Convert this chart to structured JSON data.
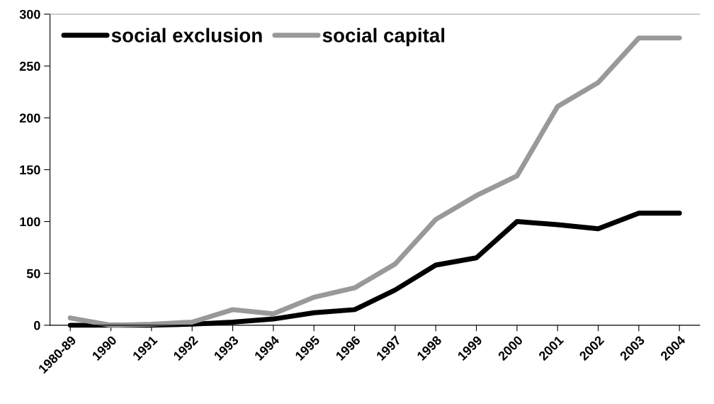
{
  "chart_data": {
    "type": "line",
    "categories": [
      "1980-89",
      "1990",
      "1991",
      "1992",
      "1993",
      "1994",
      "1995",
      "1996",
      "1997",
      "1998",
      "1999",
      "2000",
      "2001",
      "2002",
      "2003",
      "2004"
    ],
    "series": [
      {
        "name": "social exclusion",
        "color": "#000000",
        "values": [
          0,
          0,
          0,
          1,
          3,
          6,
          12,
          15,
          34,
          58,
          65,
          100,
          97,
          93,
          108,
          108
        ]
      },
      {
        "name": "social capital",
        "color": "#999999",
        "values": [
          7,
          0,
          1,
          3,
          15,
          11,
          27,
          36,
          59,
          102,
          125,
          144,
          211,
          234,
          277,
          277
        ]
      }
    ],
    "ylim": [
      0,
      300
    ],
    "yticks": [
      0,
      50,
      100,
      150,
      200,
      250,
      300
    ],
    "grid": false,
    "legend": "top left",
    "marker": "none",
    "line_style": "solid"
  }
}
